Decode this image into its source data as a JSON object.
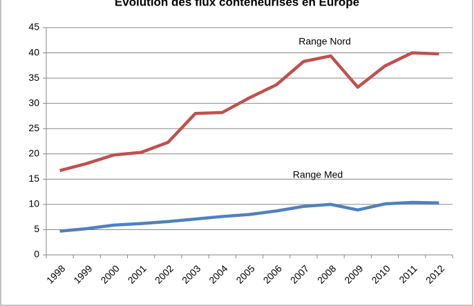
{
  "chart_data": {
    "type": "line",
    "title": "Evolution des flux conteneurisés en Europe",
    "categories": [
      "1998",
      "1999",
      "2000",
      "2001",
      "2002",
      "2003",
      "2004",
      "2005",
      "2006",
      "2007",
      "2008",
      "2009",
      "2010",
      "2011",
      "2012"
    ],
    "series": [
      {
        "name": "Range Nord",
        "color": "#c0504d",
        "values": [
          16.7,
          18.1,
          19.8,
          20.3,
          22.3,
          28,
          28.2,
          31.1,
          33.7,
          38.3,
          39.4,
          33.2,
          37.4,
          40,
          39.8
        ]
      },
      {
        "name": "Range Med",
        "color": "#4f81bd",
        "values": [
          4.7,
          5.2,
          5.9,
          6.2,
          6.6,
          7.1,
          7.6,
          8.0,
          8.7,
          9.6,
          10.0,
          8.9,
          10.1,
          10.4,
          10.3
        ]
      }
    ],
    "ylim": [
      0,
      45
    ],
    "yticks": [
      0,
      5,
      10,
      15,
      20,
      25,
      30,
      35,
      40,
      45
    ],
    "grid": true
  }
}
